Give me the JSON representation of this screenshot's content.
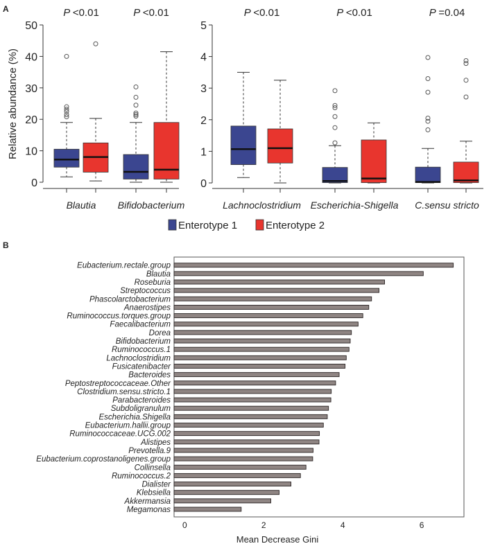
{
  "colors": {
    "enterotype1": "#3b4690",
    "enterotype2": "#e8352e",
    "bar_fill": "#8f8583",
    "bar_stroke": "#2a2424"
  },
  "chart_data": [
    {
      "type": "boxplot",
      "panel_label": "A",
      "ylabel": "Relative abundance (%)",
      "legend": [
        "Enterotype 1",
        "Enterotype 2"
      ],
      "legend_placement": "bottom-center",
      "subplots": [
        {
          "ylim": [
            0,
            50
          ],
          "yticks": [
            0,
            10,
            20,
            30,
            40,
            50
          ],
          "groups": [
            {
              "name": "Blautia",
              "pvalue": "P <0.01",
              "boxes": [
                {
                  "series": "Enterotype 1",
                  "min": 1.7,
                  "q1": 4.8,
                  "median": 7.2,
                  "q3": 10.5,
                  "max": 19,
                  "outliers": [
                    20.8,
                    21.5,
                    22.5,
                    23.2,
                    24,
                    40
                  ]
                },
                {
                  "series": "Enterotype 2",
                  "min": 0.4,
                  "q1": 3.2,
                  "median": 8,
                  "q3": 12.5,
                  "max": 20.3,
                  "outliers": [
                    44
                  ]
                }
              ]
            },
            {
              "name": "Bifidobacterium",
              "pvalue": "P <0.01",
              "boxes": [
                {
                  "series": "Enterotype 1",
                  "min": 0,
                  "q1": 1,
                  "median": 3.3,
                  "q3": 8.8,
                  "max": 19,
                  "outliers": [
                    21,
                    21.5,
                    22,
                    24.5,
                    27,
                    30.3
                  ]
                },
                {
                  "series": "Enterotype 2",
                  "min": 0,
                  "q1": 1,
                  "median": 4,
                  "q3": 19,
                  "max": 41.5,
                  "outliers": []
                }
              ]
            }
          ]
        },
        {
          "ylim": [
            0,
            5
          ],
          "yticks": [
            0,
            1,
            2,
            3,
            4,
            5
          ],
          "groups": [
            {
              "name": "Lachnoclostridium",
              "pvalue": "P <0.01",
              "boxes": [
                {
                  "series": "Enterotype 1",
                  "min": 0.17,
                  "q1": 0.58,
                  "median": 1.07,
                  "q3": 1.8,
                  "max": 3.5,
                  "outliers": []
                },
                {
                  "series": "Enterotype 2",
                  "min": 0,
                  "q1": 0.63,
                  "median": 1.1,
                  "q3": 1.71,
                  "max": 3.25,
                  "outliers": []
                }
              ]
            },
            {
              "name": "Escherichia-Shigella",
              "pvalue": "P <0.01",
              "boxes": [
                {
                  "series": "Enterotype 1",
                  "min": 0,
                  "q1": 0.01,
                  "median": 0.06,
                  "q3": 0.49,
                  "max": 1.18,
                  "outliers": [
                    1.27,
                    1.75,
                    2.1,
                    2.38,
                    2.45,
                    2.92
                  ]
                },
                {
                  "series": "Enterotype 2",
                  "min": 0,
                  "q1": 0.01,
                  "median": 0.14,
                  "q3": 1.36,
                  "max": 1.9,
                  "outliers": []
                }
              ]
            },
            {
              "name": "C.sensu stricto",
              "pvalue": "P =0.04",
              "boxes": [
                {
                  "series": "Enterotype 1",
                  "min": 0,
                  "q1": 0.01,
                  "median": 0.03,
                  "q3": 0.5,
                  "max": 1.09,
                  "outliers": [
                    1.68,
                    1.95,
                    2.05,
                    2.87,
                    3.3,
                    3.97
                  ]
                },
                {
                  "series": "Enterotype 2",
                  "min": 0,
                  "q1": 0.01,
                  "median": 0.08,
                  "q3": 0.66,
                  "max": 1.32,
                  "outliers": [
                    2.72,
                    3.25,
                    3.78,
                    3.87
                  ]
                }
              ]
            }
          ]
        }
      ]
    },
    {
      "type": "bar",
      "orientation": "horizontal",
      "panel_label": "B",
      "xlabel": "Mean Decrease Gini",
      "xlim": [
        -0.27,
        7.07
      ],
      "xticks": [
        0,
        2,
        4,
        6
      ],
      "categories": [
        "Eubacterium.rectale.group",
        "Blautia",
        "Roseburia",
        "Streptococcus",
        "Phascolarctobacterium",
        "Anaerostipes",
        "Ruminococcus.torques.group",
        "Faecalibacterium",
        "Dorea",
        "Bifidobacterium",
        "Ruminococcus.1",
        "Lachnoclostridium",
        "Fusicatenibacter",
        "Bacteroides",
        "Peptostreptococcaceae.Other",
        "Clostridium.sensu.stricto.1",
        "Parabacteroides",
        "Subdoligranulum",
        "Escherichia.Shigella",
        "Eubacterium.hallii.group",
        "Ruminococcaceae.UCG.002",
        "Alistipes",
        "Prevotella.9",
        "Eubacterium.coprostanoligenes.group",
        "Collinsella",
        "Ruminococcus.2",
        "Dialister",
        "Klebsiella",
        "Akkermansia",
        "Megamonas"
      ],
      "values": [
        6.8,
        6.04,
        5.06,
        4.92,
        4.73,
        4.66,
        4.51,
        4.39,
        4.22,
        4.19,
        4.16,
        4.09,
        4.06,
        3.91,
        3.82,
        3.71,
        3.7,
        3.64,
        3.61,
        3.51,
        3.41,
        3.4,
        3.25,
        3.24,
        3.07,
        2.93,
        2.69,
        2.39,
        2.18,
        1.43
      ]
    }
  ]
}
